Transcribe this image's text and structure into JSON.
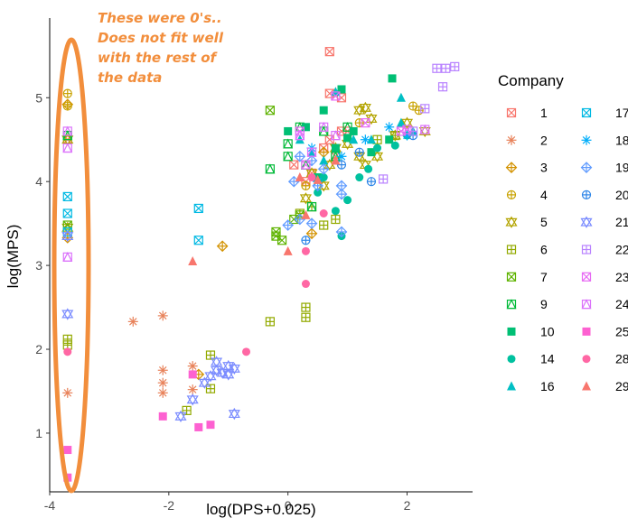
{
  "chart_data": {
    "type": "scatter",
    "xlabel": "log(DPS+0.025)",
    "ylabel": "log(MPS)",
    "xlim": [
      -4,
      3.1
    ],
    "ylim": [
      0.3,
      5.95
    ],
    "x_ticks": [
      -4,
      -2,
      0,
      2
    ],
    "y_ticks": [
      1,
      2,
      3,
      4,
      5
    ],
    "grid": false,
    "legend_title": "Company",
    "legend_position": "right",
    "annotation": {
      "lines": [
        "These were 0's..",
        "Does not fit well",
        "with the rest of",
        "the data"
      ],
      "color": "#f28e3c",
      "encircles_x": -3.7
    },
    "series": [
      {
        "name": "1",
        "color": "#f8766d",
        "marker": "square-x",
        "points": [
          [
            -3.7,
            4.5
          ],
          [
            0.7,
            4.5
          ],
          [
            0.9,
            4.6
          ],
          [
            0.7,
            5.05
          ],
          [
            0.9,
            5.0
          ],
          [
            0.7,
            5.55
          ],
          [
            0.4,
            4.1
          ],
          [
            0.6,
            4.4
          ],
          [
            0.8,
            4.3
          ],
          [
            1.0,
            4.6
          ],
          [
            0.3,
            4.0
          ],
          [
            0.1,
            4.2
          ]
        ]
      },
      {
        "name": "2",
        "color": "#e8825a",
        "marker": "asterisk",
        "points": [
          [
            -2.6,
            2.33
          ],
          [
            -2.1,
            2.4
          ],
          [
            -2.1,
            1.75
          ],
          [
            -2.1,
            1.6
          ],
          [
            -2.1,
            1.48
          ],
          [
            -1.6,
            1.8
          ],
          [
            -1.6,
            1.52
          ],
          [
            -3.7,
            1.48
          ]
        ]
      },
      {
        "name": "3",
        "color": "#d39200",
        "marker": "diamond-plus",
        "points": [
          [
            -3.7,
            4.92
          ],
          [
            -3.7,
            3.33
          ],
          [
            -1.1,
            3.23
          ],
          [
            -1.5,
            1.7
          ],
          [
            0.4,
            3.38
          ],
          [
            0.6,
            4.35
          ]
        ]
      },
      {
        "name": "4",
        "color": "#c8a200",
        "marker": "circle-plus",
        "points": [
          [
            -3.7,
            5.05
          ],
          [
            -3.7,
            4.9
          ],
          [
            2.1,
            4.9
          ],
          [
            2.2,
            4.85
          ],
          [
            1.2,
            4.7
          ],
          [
            0.3,
            3.95
          ]
        ]
      },
      {
        "name": "5",
        "color": "#b3a400",
        "marker": "tri-down",
        "points": [
          [
            -3.7,
            4.5
          ],
          [
            -3.7,
            3.45
          ],
          [
            1.2,
            4.85
          ],
          [
            1.3,
            4.88
          ],
          [
            1.4,
            4.75
          ],
          [
            0.8,
            4.4
          ],
          [
            1.5,
            4.3
          ],
          [
            2.3,
            4.6
          ],
          [
            0.6,
            3.95
          ],
          [
            0.7,
            4.2
          ],
          [
            1.2,
            4.3
          ],
          [
            1.3,
            4.2
          ],
          [
            1.0,
            4.45
          ],
          [
            2.0,
            4.7
          ],
          [
            1.8,
            4.55
          ],
          [
            0.3,
            3.8
          ],
          [
            0.4,
            4.1
          ]
        ]
      },
      {
        "name": "6",
        "color": "#93aa00",
        "marker": "square-plus",
        "points": [
          [
            -3.7,
            2.12
          ],
          [
            -3.7,
            2.05
          ],
          [
            -1.3,
            1.93
          ],
          [
            -1.3,
            1.53
          ],
          [
            -1.7,
            1.27
          ],
          [
            0.3,
            2.5
          ],
          [
            0.3,
            2.38
          ],
          [
            -0.3,
            2.33
          ],
          [
            0.2,
            3.62
          ],
          [
            0.6,
            3.48
          ],
          [
            0.8,
            3.55
          ],
          [
            0.4,
            3.7
          ],
          [
            1.5,
            4.5
          ],
          [
            1.8,
            4.55
          ]
        ]
      },
      {
        "name": "7",
        "color": "#5eb300",
        "marker": "square-x",
        "points": [
          [
            -3.7,
            3.48
          ],
          [
            -0.3,
            4.85
          ],
          [
            -0.2,
            3.35
          ],
          [
            -0.1,
            3.3
          ],
          [
            0.1,
            3.55
          ],
          [
            0.2,
            3.6
          ],
          [
            -0.2,
            3.4
          ]
        ]
      },
      {
        "name": "9",
        "color": "#00ba38",
        "marker": "square-tri",
        "points": [
          [
            -3.7,
            4.55
          ],
          [
            -0.3,
            4.15
          ],
          [
            0.0,
            4.45
          ],
          [
            0.0,
            4.3
          ],
          [
            0.3,
            4.2
          ],
          [
            0.6,
            4.6
          ],
          [
            0.4,
            3.7
          ],
          [
            1.0,
            4.65
          ],
          [
            0.8,
            4.3
          ],
          [
            0.2,
            4.65
          ]
        ]
      },
      {
        "name": "10",
        "color": "#00bf74",
        "marker": "square",
        "points": [
          [
            1.75,
            5.23
          ],
          [
            0.9,
            5.1
          ],
          [
            0.0,
            4.6
          ],
          [
            0.3,
            4.65
          ],
          [
            1.0,
            4.52
          ],
          [
            1.4,
            4.35
          ],
          [
            1.7,
            4.5
          ],
          [
            0.5,
            4.05
          ],
          [
            0.8,
            4.4
          ],
          [
            1.1,
            4.6
          ],
          [
            0.6,
            4.85
          ]
        ]
      },
      {
        "name": "14",
        "color": "#00c19f",
        "marker": "circle",
        "points": [
          [
            0.5,
            3.87
          ],
          [
            0.9,
            3.35
          ],
          [
            1.0,
            3.78
          ],
          [
            0.8,
            3.65
          ],
          [
            1.5,
            4.4
          ],
          [
            1.8,
            4.43
          ],
          [
            2.0,
            4.55
          ],
          [
            0.6,
            4.05
          ],
          [
            1.2,
            4.05
          ],
          [
            1.35,
            4.15
          ]
        ]
      },
      {
        "name": "16",
        "color": "#00bfc4",
        "marker": "triangle",
        "points": [
          [
            1.9,
            5.0
          ],
          [
            0.8,
            5.07
          ],
          [
            1.4,
            4.5
          ],
          [
            1.9,
            4.7
          ],
          [
            2.1,
            4.6
          ],
          [
            0.4,
            4.35
          ],
          [
            0.2,
            4.5
          ],
          [
            0.6,
            4.25
          ],
          [
            1.1,
            4.5
          ]
        ]
      },
      {
        "name": "17",
        "color": "#00b9e3",
        "marker": "square-x",
        "points": [
          [
            -3.7,
            3.82
          ],
          [
            -3.7,
            3.62
          ],
          [
            -3.7,
            3.4
          ],
          [
            -1.5,
            3.68
          ],
          [
            -1.5,
            3.3
          ]
        ]
      },
      {
        "name": "18",
        "color": "#00adfa",
        "marker": "asterisk",
        "points": [
          [
            0.4,
            4.4
          ],
          [
            0.9,
            4.3
          ],
          [
            1.3,
            4.5
          ],
          [
            2.0,
            4.55
          ],
          [
            0.5,
            4.0
          ],
          [
            1.7,
            4.65
          ]
        ]
      },
      {
        "name": "19",
        "color": "#619cff",
        "marker": "diamond-plus",
        "points": [
          [
            0.2,
            4.3
          ],
          [
            0.5,
            3.95
          ],
          [
            0.2,
            3.55
          ],
          [
            0.4,
            3.5
          ],
          [
            0.9,
            3.4
          ],
          [
            0.9,
            3.95
          ],
          [
            0.9,
            3.85
          ],
          [
            0.1,
            4.0
          ],
          [
            0.6,
            4.15
          ],
          [
            0.4,
            4.25
          ],
          [
            0.0,
            3.48
          ]
        ]
      },
      {
        "name": "20",
        "color": "#2e86e8",
        "marker": "circle-plus",
        "points": [
          [
            1.4,
            4.0
          ],
          [
            0.3,
            3.3
          ],
          [
            0.9,
            4.2
          ],
          [
            1.2,
            4.35
          ],
          [
            2.1,
            4.55
          ]
        ]
      },
      {
        "name": "21",
        "color": "#7b8cff",
        "marker": "tri-down",
        "points": [
          [
            -3.7,
            2.42
          ],
          [
            -3.7,
            3.35
          ],
          [
            -1.2,
            1.85
          ],
          [
            -1.0,
            1.8
          ],
          [
            -0.9,
            1.77
          ],
          [
            -1.3,
            1.68
          ],
          [
            -1.1,
            1.72
          ],
          [
            -1.4,
            1.6
          ],
          [
            -1.8,
            1.2
          ],
          [
            -0.9,
            1.23
          ],
          [
            -1.6,
            1.4
          ],
          [
            -1.0,
            1.7
          ],
          [
            -1.2,
            1.75
          ]
        ]
      },
      {
        "name": "22",
        "color": "#b983ff",
        "marker": "square-plus",
        "points": [
          [
            2.5,
            5.35
          ],
          [
            2.65,
            5.35
          ],
          [
            2.8,
            5.37
          ],
          [
            2.6,
            5.13
          ],
          [
            2.3,
            4.87
          ],
          [
            1.6,
            4.03
          ],
          [
            2.1,
            4.6
          ]
        ]
      },
      {
        "name": "23",
        "color": "#e76bf3",
        "marker": "square-x",
        "points": [
          [
            0.8,
            5.02
          ],
          [
            1.3,
            4.7
          ],
          [
            0.2,
            4.6
          ],
          [
            0.3,
            4.2
          ],
          [
            1.9,
            4.6
          ],
          [
            2.0,
            4.62
          ]
        ]
      },
      {
        "name": "24",
        "color": "#db72fb",
        "marker": "square-tri",
        "points": [
          [
            -3.7,
            4.6
          ],
          [
            -3.7,
            4.4
          ],
          [
            -3.7,
            3.1
          ],
          [
            0.6,
            4.65
          ],
          [
            0.8,
            4.55
          ],
          [
            0.2,
            4.55
          ],
          [
            0.4,
            4.35
          ],
          [
            2.3,
            4.62
          ]
        ]
      },
      {
        "name": "25",
        "color": "#fd61d1",
        "marker": "square",
        "points": [
          [
            -3.7,
            0.8
          ],
          [
            -3.7,
            0.47
          ],
          [
            -2.1,
            1.2
          ],
          [
            -1.5,
            1.07
          ],
          [
            -1.3,
            1.1
          ],
          [
            -1.6,
            1.7
          ]
        ]
      },
      {
        "name": "28",
        "color": "#ff67a4",
        "marker": "circle",
        "points": [
          [
            -3.7,
            1.97
          ],
          [
            -0.7,
            1.97
          ],
          [
            0.3,
            2.78
          ],
          [
            0.3,
            3.17
          ],
          [
            0.6,
            3.62
          ],
          [
            0.4,
            4.05
          ]
        ]
      },
      {
        "name": "29",
        "color": "#f8766d",
        "marker": "triangle",
        "points": [
          [
            -1.6,
            3.05
          ],
          [
            0.0,
            3.17
          ],
          [
            0.3,
            3.6
          ],
          [
            0.8,
            4.25
          ],
          [
            0.5,
            4.02
          ],
          [
            0.2,
            4.05
          ]
        ]
      }
    ]
  }
}
